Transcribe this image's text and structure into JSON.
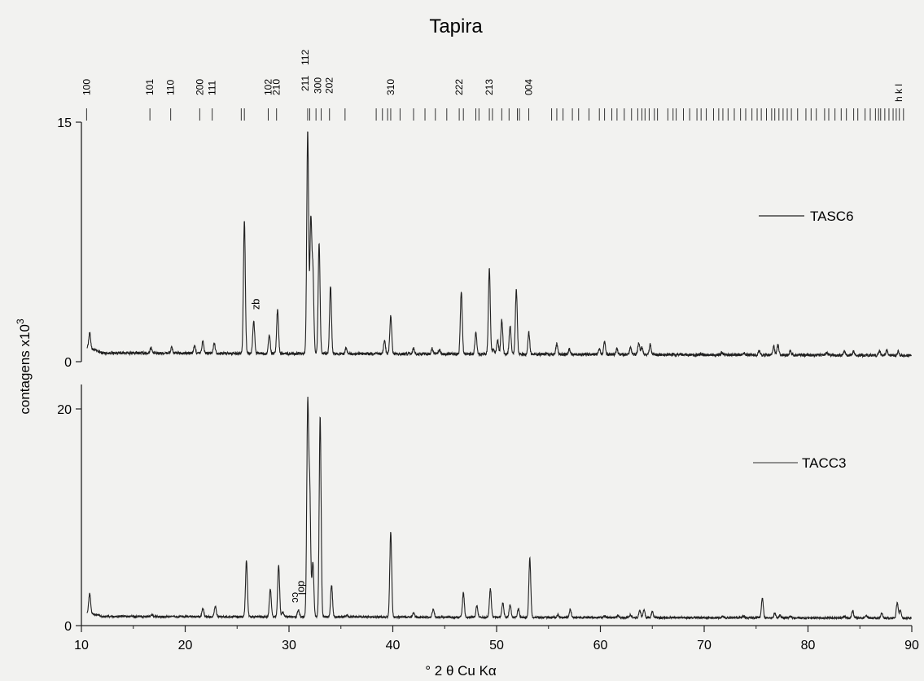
{
  "chart_data": {
    "type": "line",
    "title": "Tapira",
    "xlabel": "° 2 θ    Cu Kα",
    "ylabel": "contagens x10",
    "ylabel_sup": "3",
    "xlim": [
      10,
      90
    ],
    "x_ticks": [
      10,
      20,
      30,
      40,
      50,
      60,
      70,
      80,
      90
    ],
    "hkl_header": "h k l",
    "hkl_labels": [
      {
        "label": "100",
        "x": 10.5
      },
      {
        "label": "101",
        "x": 16.6
      },
      {
        "label": "110",
        "x": 18.6
      },
      {
        "label": "200",
        "x": 21.4
      },
      {
        "label": "111",
        "x": 22.6
      },
      {
        "label": "102",
        "x": 28.0
      },
      {
        "label": "210",
        "x": 28.8
      },
      {
        "label": "211",
        "x": 31.8
      },
      {
        "label": "112",
        "x": 32.7
      },
      {
        "label": "300",
        "x": 32.6
      },
      {
        "label": "202",
        "x": 33.9
      },
      {
        "label": "310",
        "x": 39.8
      },
      {
        "label": "222",
        "x": 46.4
      },
      {
        "label": "213",
        "x": 49.3
      },
      {
        "label": "004",
        "x": 53.1
      }
    ],
    "reflection_markers": [
      10.5,
      16.6,
      18.6,
      21.4,
      22.6,
      25.4,
      25.7,
      28.0,
      28.8,
      31.8,
      32.0,
      32.6,
      33.1,
      33.9,
      35.4,
      38.4,
      39.0,
      39.5,
      39.8,
      40.7,
      42.0,
      43.1,
      44.1,
      45.2,
      46.4,
      46.8,
      48.0,
      48.3,
      49.3,
      49.6,
      50.5,
      51.2,
      52.0,
      52.2,
      53.1,
      55.3,
      55.8,
      56.4,
      57.3,
      57.9,
      58.9,
      59.9,
      60.4,
      61.1,
      61.6,
      62.3,
      63.0,
      63.6,
      64.0,
      64.3,
      64.7,
      65.2,
      65.5,
      66.5,
      67.0,
      67.3,
      68.0,
      68.6,
      69.3,
      69.7,
      70.2,
      70.9,
      71.4,
      71.8,
      72.3,
      72.9,
      73.5,
      74.0,
      74.6,
      75.1,
      75.5,
      76.0,
      76.5,
      76.8,
      77.2,
      77.6,
      78.0,
      78.4,
      79.0,
      79.8,
      80.3,
      80.8,
      81.6,
      82.0,
      82.6,
      83.2,
      83.7,
      84.4,
      84.8,
      85.5,
      86.0,
      86.5,
      86.8,
      87.0,
      87.4,
      87.8,
      88.2,
      88.5,
      88.8,
      89.2
    ],
    "panels": [
      {
        "series_name": "TASC6",
        "ylim": [
          0,
          15
        ],
        "y_ticks": [
          0,
          15
        ],
        "baseline": 0.55,
        "annotations": [
          {
            "text": "qz",
            "x": 26.6,
            "y": 3.6
          }
        ],
        "peaks": [
          [
            10.8,
            1.5
          ],
          [
            16.7,
            0.9
          ],
          [
            18.7,
            0.9
          ],
          [
            20.9,
            1.0
          ],
          [
            21.7,
            1.3
          ],
          [
            22.8,
            1.2
          ],
          [
            25.7,
            8.8
          ],
          [
            26.6,
            2.6
          ],
          [
            28.1,
            1.7
          ],
          [
            28.9,
            3.3
          ],
          [
            31.8,
            14.5
          ],
          [
            32.1,
            8.7
          ],
          [
            32.3,
            5.5
          ],
          [
            32.9,
            7.4
          ],
          [
            34.0,
            4.8
          ],
          [
            35.5,
            0.9
          ],
          [
            39.2,
            1.4
          ],
          [
            39.8,
            2.9
          ],
          [
            42.0,
            0.9
          ],
          [
            43.8,
            0.9
          ],
          [
            44.5,
            0.8
          ],
          [
            46.6,
            4.5
          ],
          [
            48.0,
            1.9
          ],
          [
            49.3,
            5.9
          ],
          [
            49.7,
            0.9
          ],
          [
            50.1,
            1.4
          ],
          [
            50.5,
            2.7
          ],
          [
            51.3,
            2.3
          ],
          [
            51.9,
            4.6
          ],
          [
            53.1,
            1.9
          ],
          [
            55.8,
            1.2
          ],
          [
            57.0,
            0.9
          ],
          [
            59.9,
            0.9
          ],
          [
            60.4,
            1.3
          ],
          [
            61.6,
            0.9
          ],
          [
            62.9,
            1.0
          ],
          [
            63.7,
            1.3
          ],
          [
            64.0,
            1.0
          ],
          [
            64.8,
            1.2
          ],
          [
            71.7,
            0.7
          ],
          [
            73.8,
            0.7
          ],
          [
            75.3,
            0.8
          ],
          [
            76.7,
            1.1
          ],
          [
            77.1,
            1.2
          ],
          [
            78.3,
            0.8
          ],
          [
            81.8,
            0.7
          ],
          [
            83.5,
            0.8
          ],
          [
            84.4,
            0.8
          ],
          [
            86.9,
            0.8
          ],
          [
            87.6,
            0.9
          ],
          [
            88.7,
            0.8
          ]
        ]
      },
      {
        "series_name": "TACC3",
        "ylim": [
          0,
          22
        ],
        "y_ticks": [
          0,
          20
        ],
        "baseline": 0.85,
        "annotations": [
          {
            "text": "cc",
            "x": 30.3,
            "y": 2.6
          },
          {
            "text": "dol",
            "x": 30.9,
            "y": 3.5
          }
        ],
        "peaks": [
          [
            10.8,
            2.7
          ],
          [
            16.8,
            1.0
          ],
          [
            18.8,
            0.9
          ],
          [
            21.7,
            1.6
          ],
          [
            22.9,
            1.8
          ],
          [
            25.9,
            6.0
          ],
          [
            28.2,
            3.4
          ],
          [
            29.0,
            5.6
          ],
          [
            29.4,
            1.3
          ],
          [
            30.9,
            1.5
          ],
          [
            31.8,
            20.0
          ],
          [
            32.0,
            12.0
          ],
          [
            32.3,
            5.9
          ],
          [
            33.0,
            19.4
          ],
          [
            34.1,
            3.8
          ],
          [
            35.6,
            1.0
          ],
          [
            39.8,
            8.7
          ],
          [
            42.0,
            1.3
          ],
          [
            43.9,
            1.6
          ],
          [
            46.8,
            3.1
          ],
          [
            48.1,
            1.9
          ],
          [
            49.4,
            3.5
          ],
          [
            50.6,
            2.2
          ],
          [
            51.3,
            2.0
          ],
          [
            52.1,
            1.6
          ],
          [
            53.2,
            6.3
          ],
          [
            55.9,
            1.1
          ],
          [
            57.1,
            1.6
          ],
          [
            60.4,
            1.0
          ],
          [
            61.7,
            1.0
          ],
          [
            62.9,
            1.1
          ],
          [
            63.8,
            1.5
          ],
          [
            64.2,
            1.6
          ],
          [
            65.0,
            1.4
          ],
          [
            71.8,
            1.0
          ],
          [
            73.8,
            1.0
          ],
          [
            75.6,
            2.7
          ],
          [
            76.8,
            1.3
          ],
          [
            77.3,
            1.1
          ],
          [
            78.3,
            1.0
          ],
          [
            83.5,
            1.0
          ],
          [
            84.3,
            1.5
          ],
          [
            85.6,
            1.1
          ],
          [
            87.1,
            1.3
          ],
          [
            88.6,
            2.3
          ],
          [
            88.9,
            1.6
          ]
        ]
      }
    ]
  }
}
